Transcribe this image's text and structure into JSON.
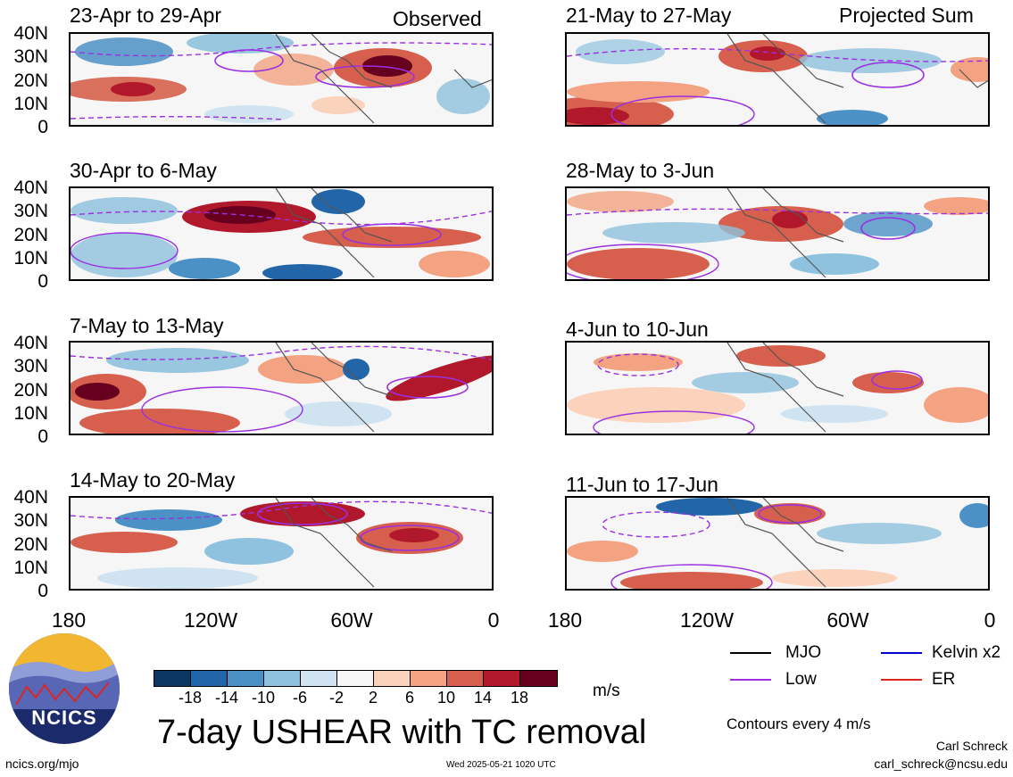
{
  "panels": [
    {
      "date": "23-Apr to 29-Apr",
      "corner": "Observed"
    },
    {
      "date": "21-May to 27-May",
      "corner": "Projected Sum"
    },
    {
      "date": "30-Apr to 6-May",
      "corner": ""
    },
    {
      "date": "28-May to 3-Jun",
      "corner": ""
    },
    {
      "date": "7-May to 13-May",
      "corner": ""
    },
    {
      "date": "4-Jun to 10-Jun",
      "corner": ""
    },
    {
      "date": "14-May to 20-May",
      "corner": ""
    },
    {
      "date": "11-Jun to 17-Jun",
      "corner": ""
    }
  ],
  "yaxis": [
    "40N",
    "30N",
    "20N",
    "10N",
    "0"
  ],
  "xaxis": [
    "180",
    "120W",
    "60W",
    "0"
  ],
  "colorbar": {
    "labels": [
      "-18",
      "-14",
      "-10",
      "-6",
      "-2",
      "2",
      "6",
      "10",
      "14",
      "18"
    ],
    "colors": [
      "#0b3764",
      "#2266a9",
      "#4b91c6",
      "#8fc2de",
      "#cfe4f0",
      "#f7f7f7",
      "#fbd2bc",
      "#f3a282",
      "#d6604d",
      "#b2182b",
      "#67001f"
    ],
    "units": "m/s"
  },
  "title": "7-day USHEAR with TC removal",
  "legend": {
    "mjo": {
      "label": "MJO",
      "color": "#000000"
    },
    "kelvin": {
      "label": "Kelvin x2",
      "color": "#0000cc"
    },
    "low": {
      "label": "Low",
      "color": "#9b30e0"
    },
    "er": {
      "label": "ER",
      "color": "#dd2222"
    },
    "contours_note": "Contours every 4 m/s"
  },
  "logo": {
    "text": "NCICS"
  },
  "footer": {
    "url": "ncics.org/mjo",
    "timestamp": "Wed 2025-05-21 1020 UTC",
    "author": "Carl Schreck",
    "email": "carl_schreck@ncsu.edu"
  }
}
